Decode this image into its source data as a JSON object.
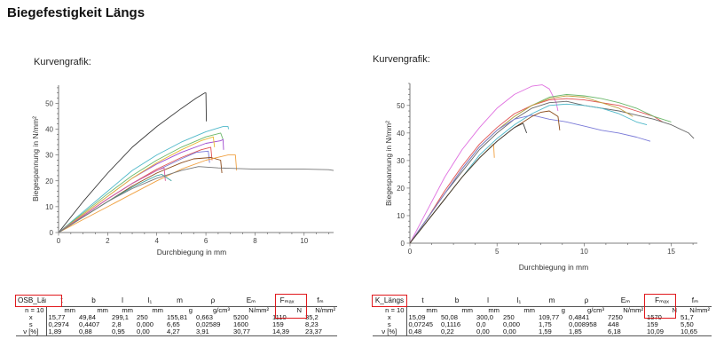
{
  "title": "Biegefestigkeit Längs",
  "colors": {
    "highlight": "#e0191d",
    "axis": "#555555"
  },
  "charts": [
    {
      "caption": "Kurvengrafik:",
      "xlabel": "Durchbiegung in mm",
      "ylabel": "Biegespannung in N/mm²"
    },
    {
      "caption": "Kurvengrafik:",
      "xlabel": "Durchbiegung in mm",
      "ylabel": "Biegespannung in N/mm²"
    }
  ],
  "chart_data": [
    {
      "type": "line",
      "xlabel": "Durchbiegung in mm",
      "ylabel": "Biegespannung in N/mm²",
      "xlim": [
        0,
        11.2
      ],
      "ylim": [
        0,
        57
      ],
      "xticks": [
        0,
        2,
        4,
        6,
        8,
        10
      ],
      "yticks": [
        0,
        10,
        20,
        30,
        40,
        50
      ],
      "grid": false,
      "series": [
        {
          "color": "#3a3a3a",
          "x": [
            0,
            1,
            2,
            3,
            4,
            5,
            5.6,
            5.95,
            6.0,
            6.02
          ],
          "y": [
            0,
            12,
            23,
            33,
            41,
            48,
            52,
            54,
            54,
            43
          ]
        },
        {
          "color": "#4fb8c9",
          "x": [
            0,
            1,
            2,
            3,
            4,
            5,
            6,
            6.7,
            6.9,
            6.92
          ],
          "y": [
            0,
            8,
            16,
            24,
            30,
            35,
            39,
            41,
            41,
            40
          ]
        },
        {
          "color": "#6bb86b",
          "x": [
            0,
            1,
            2,
            3,
            4,
            5,
            6,
            6.6,
            6.7
          ],
          "y": [
            0,
            7.5,
            15,
            22,
            28,
            33,
            37,
            38.5,
            36
          ]
        },
        {
          "color": "#a04bd0",
          "x": [
            0,
            1,
            2,
            3,
            4,
            5,
            6,
            6.6,
            6.7,
            6.72
          ],
          "y": [
            0,
            7,
            14,
            21,
            26.5,
            31,
            34.5,
            35.5,
            36,
            32
          ]
        },
        {
          "color": "#e8b92e",
          "x": [
            0,
            1,
            2,
            3,
            4,
            5,
            5.8,
            6.3,
            6.35
          ],
          "y": [
            0,
            7,
            14,
            21,
            27,
            32,
            35.5,
            37,
            33
          ]
        },
        {
          "color": "#e05050",
          "x": [
            0,
            1,
            2,
            3,
            4,
            5,
            5.8,
            6.2,
            6.25
          ],
          "y": [
            0,
            6.5,
            13,
            19,
            24.5,
            29,
            32,
            33,
            28
          ]
        },
        {
          "color": "#7a7ad8",
          "x": [
            0,
            1,
            2,
            3,
            4,
            5,
            5.6,
            6.1,
            6.15
          ],
          "y": [
            0,
            6.5,
            13,
            19,
            24,
            28.5,
            31,
            31.5,
            27
          ]
        },
        {
          "color": "#8b4a1a",
          "x": [
            0,
            1,
            2,
            3,
            4,
            5,
            5.5,
            6.2,
            6.6,
            6.65
          ],
          "y": [
            0,
            6,
            12,
            18,
            23,
            27,
            28.5,
            29,
            28,
            23
          ]
        },
        {
          "color": "#f0a040",
          "x": [
            0,
            1,
            2,
            3,
            4,
            5,
            6,
            6.9,
            7.2,
            7.25
          ],
          "y": [
            0,
            5,
            10,
            15,
            20,
            24.5,
            28,
            30,
            30,
            24
          ]
        },
        {
          "color": "#d85c9c",
          "x": [
            0,
            1,
            2,
            3,
            4,
            4.3,
            4.35
          ],
          "y": [
            0,
            6.5,
            13,
            19,
            24,
            25,
            20
          ]
        },
        {
          "color": "#3aa3a0",
          "x": [
            0,
            1,
            2,
            3,
            4,
            4.2,
            4.6
          ],
          "y": [
            0,
            6,
            12,
            17.5,
            22,
            22.5,
            20
          ]
        },
        {
          "color": "#777777",
          "x": [
            0,
            1,
            2,
            3,
            4,
            5,
            5.7,
            6.5,
            8,
            9,
            10,
            11,
            11.2
          ],
          "y": [
            0,
            6,
            12,
            17,
            21,
            24,
            25.5,
            25,
            24.5,
            24.5,
            24.5,
            24.3,
            24
          ]
        }
      ]
    },
    {
      "type": "line",
      "xlabel": "Durchbiegung in mm",
      "ylabel": "Biegespannung in N/mm²",
      "xlim": [
        0,
        16.5
      ],
      "ylim": [
        0,
        58
      ],
      "xticks": [
        0,
        5,
        10,
        15
      ],
      "yticks": [
        0,
        10,
        20,
        30,
        40,
        50
      ],
      "grid": false,
      "series": [
        {
          "color": "#e070e0",
          "x": [
            0,
            1,
            2,
            3,
            4,
            5,
            6,
            7,
            7.6,
            8,
            8.4,
            8.5
          ],
          "y": [
            0,
            12,
            24,
            34,
            42,
            49,
            54,
            57,
            57.5,
            56,
            51,
            48
          ]
        },
        {
          "color": "#e05050",
          "x": [
            0,
            1,
            2,
            3,
            4,
            5,
            6,
            7,
            8,
            9,
            10,
            11,
            12,
            13,
            14,
            14.5
          ],
          "y": [
            0,
            9,
            19,
            28,
            36,
            42,
            47,
            50,
            52,
            52.5,
            52,
            51,
            50,
            48,
            46,
            44
          ]
        },
        {
          "color": "#6bb86b",
          "x": [
            0,
            1,
            2,
            3,
            4,
            5,
            6,
            7,
            8,
            9,
            10,
            11,
            12,
            13,
            14,
            15
          ],
          "y": [
            0,
            9,
            18,
            27,
            35,
            41,
            46,
            50,
            53,
            54,
            53.5,
            52.5,
            51,
            49,
            46,
            44
          ]
        },
        {
          "color": "#666666",
          "x": [
            0,
            1,
            2,
            3,
            4,
            5,
            6,
            7,
            8,
            9,
            10,
            12,
            14,
            15,
            16,
            16.3
          ],
          "y": [
            0,
            9,
            18,
            26,
            34,
            40,
            45,
            49,
            51,
            51.5,
            50,
            48,
            45,
            43,
            40,
            38
          ]
        },
        {
          "color": "#c0a040",
          "x": [
            0,
            1,
            2,
            3,
            4,
            5,
            6,
            7,
            8,
            9,
            10,
            11,
            12,
            12.8
          ],
          "y": [
            0,
            9,
            18,
            27,
            35,
            41,
            46,
            50,
            52.5,
            53.5,
            53,
            51,
            49,
            46
          ]
        },
        {
          "color": "#4fb8c9",
          "x": [
            0,
            1,
            2,
            3,
            4,
            5,
            6,
            7,
            8,
            9,
            10,
            11,
            12,
            13,
            13.6
          ],
          "y": [
            0,
            8,
            16,
            24,
            32,
            38,
            43,
            47,
            50,
            50.5,
            50,
            49,
            47,
            44,
            43
          ]
        },
        {
          "color": "#7a7ad8",
          "x": [
            0,
            1,
            2,
            3,
            4,
            5,
            6,
            7,
            8,
            9,
            10,
            11,
            12,
            13,
            13.8
          ],
          "y": [
            0,
            9,
            18,
            27,
            35,
            41,
            45,
            46.5,
            45,
            44,
            42.5,
            41,
            40,
            38.5,
            37
          ]
        },
        {
          "color": "#8b4a1a",
          "x": [
            0,
            1,
            2,
            3,
            4,
            5,
            6,
            7,
            7.5,
            8,
            8.5,
            8.6
          ],
          "y": [
            0,
            8,
            16,
            24,
            31,
            37,
            42,
            46,
            47.5,
            48,
            46,
            41
          ]
        },
        {
          "color": "#f0a040",
          "x": [
            0,
            1,
            2,
            3,
            4,
            4.8,
            4.85
          ],
          "y": [
            0,
            8,
            16,
            24,
            31,
            36,
            31
          ]
        },
        {
          "color": "#3a3a3a",
          "x": [
            0,
            1,
            2,
            3,
            4,
            5,
            6,
            6.5,
            6.7
          ],
          "y": [
            0,
            8,
            16,
            24,
            31,
            37,
            42,
            43.5,
            40
          ]
        }
      ]
    }
  ],
  "tables": [
    {
      "label": "OSB_Längs",
      "headers": [
        "t",
        "b",
        "l",
        "l₁",
        "m",
        "ρ",
        "Eₘ",
        "Fₘₐₓ",
        "fₘ"
      ],
      "units_label": "n = 10",
      "units": [
        "mm",
        "mm",
        "mm",
        "mm",
        "g",
        "g/cm³",
        "N/mm²",
        "N",
        "N/mm²"
      ],
      "rows": [
        {
          "label": "x",
          "values": [
            "15,77",
            "49,84",
            "299,1",
            "250",
            "155,81",
            "0,663",
            "5200",
            "1110",
            "35,2"
          ]
        },
        {
          "label": "s",
          "values": [
            "0,2974",
            "0,4407",
            "2,8",
            "0,000",
            "6,65",
            "0,02589",
            "1600",
            "159",
            "8,23"
          ]
        },
        {
          "label": "ν [%]",
          "values": [
            "1,89",
            "0,88",
            "0,95",
            "0,00",
            "4,27",
            "3,91",
            "30,77",
            "14,39",
            "23,37"
          ]
        }
      ]
    },
    {
      "label": "K_Längs",
      "headers": [
        "t",
        "b",
        "l",
        "l₁",
        "m",
        "ρ",
        "Eₘ",
        "Fₘₐₓ",
        "fₘ"
      ],
      "units_label": "n = 10",
      "units": [
        "mm",
        "mm",
        "mm",
        "mm",
        "g",
        "g/cm³",
        "N/mm²",
        "N",
        "N/mm²"
      ],
      "rows": [
        {
          "label": "x",
          "values": [
            "15,09",
            "50,08",
            "300,0",
            "250",
            "109,77",
            "0,4841",
            "7250",
            "1570",
            "51,7"
          ]
        },
        {
          "label": "s",
          "values": [
            "0,07245",
            "0,1116",
            "0,0",
            "0,000",
            "1,75",
            "0,008958",
            "448",
            "159",
            "5,50"
          ]
        },
        {
          "label": "ν [%]",
          "values": [
            "0,48",
            "0,22",
            "0,00",
            "0,00",
            "1,59",
            "1,85",
            "6,18",
            "10,09",
            "10,65"
          ]
        }
      ]
    }
  ]
}
